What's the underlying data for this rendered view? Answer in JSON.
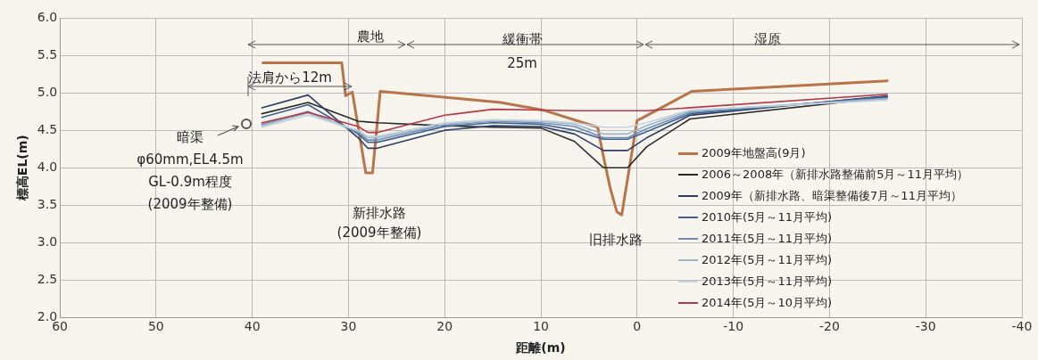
{
  "chart_data": {
    "type": "line",
    "xlabel": "距離(m)",
    "ylabel": "標高EL(m)",
    "xlim": [
      60,
      -40
    ],
    "xticks": [
      60,
      50,
      40,
      30,
      20,
      10,
      0,
      -10,
      -20,
      -30,
      -40
    ],
    "ylim": [
      2.0,
      6.0
    ],
    "yticks": [
      {
        "value": 2,
        "label": "2.0"
      },
      {
        "value": 2.5,
        "label": "2.5"
      },
      {
        "value": 3,
        "label": "3.0"
      },
      {
        "value": 3.5,
        "label": "3.5"
      },
      {
        "value": 4,
        "label": "4.0"
      },
      {
        "value": 4.5,
        "label": "4.5"
      },
      {
        "value": 5,
        "label": "5.0"
      },
      {
        "value": 5.5,
        "label": "5.5"
      },
      {
        "value": 6,
        "label": "6.0"
      }
    ],
    "grid": true,
    "legend": "bottom right",
    "marker": "none",
    "line_style": "solid",
    "x": [
      39,
      34.2,
      29,
      28,
      27,
      20,
      15,
      10,
      6.5,
      3.5,
      1,
      -1,
      -5.5,
      -26
    ],
    "series": [
      {
        "name": "2009年地盤高(9月)",
        "color": "#b8744a",
        "x": [
          38.9,
          30.7,
          30.3,
          29.6,
          28.2,
          27.5,
          26.7,
          14.2,
          9.8,
          4.1,
          3.6,
          2.8,
          2.1,
          1.6,
          0,
          -0.5,
          -5.7,
          -26
        ],
        "values": [
          5.4,
          5.4,
          4.96,
          5.01,
          3.93,
          3.93,
          5.02,
          4.87,
          4.77,
          4.54,
          4.21,
          3.73,
          3.41,
          3.37,
          4.63,
          4.66,
          5.02,
          5.16
        ]
      },
      {
        "name": "2006～2008年（新排水路整備前5月～11月平均）",
        "color": "#2a2a2a",
        "values": [
          4.72,
          4.87,
          4.62,
          4.61,
          4.6,
          4.56,
          4.54,
          4.53,
          4.35,
          4.0,
          4.0,
          4.28,
          4.65,
          4.94
        ]
      },
      {
        "name": "2009年（新排水路、暗渠整備後7月～11月平均）",
        "color": "#2e3d66",
        "values": [
          4.8,
          4.97,
          4.4,
          4.26,
          4.26,
          4.5,
          4.56,
          4.55,
          4.45,
          4.23,
          4.23,
          4.4,
          4.7,
          4.96
        ]
      },
      {
        "name": "2010年(5月～11月平均)",
        "color": "#3f5f90",
        "values": [
          4.67,
          4.84,
          4.45,
          4.34,
          4.34,
          4.55,
          4.6,
          4.58,
          4.5,
          4.38,
          4.38,
          4.48,
          4.72,
          4.95
        ]
      },
      {
        "name": "2011年(5月～11月平均)",
        "color": "#6d8db5",
        "values": [
          4.58,
          4.75,
          4.47,
          4.37,
          4.37,
          4.57,
          4.62,
          4.6,
          4.55,
          4.4,
          4.4,
          4.52,
          4.74,
          4.93
        ]
      },
      {
        "name": "2012年(5月～11月平均)",
        "color": "#9ab5cc",
        "values": [
          4.56,
          4.73,
          4.49,
          4.4,
          4.4,
          4.58,
          4.63,
          4.62,
          4.58,
          4.45,
          4.45,
          4.56,
          4.76,
          4.92
        ]
      },
      {
        "name": "2013年(5月～11月平均)",
        "color": "#c3d3de",
        "values": [
          4.54,
          4.7,
          4.5,
          4.42,
          4.42,
          4.6,
          4.64,
          4.63,
          4.6,
          4.54,
          4.54,
          4.6,
          4.77,
          4.9
        ]
      },
      {
        "name": "2014年(5月～10月平均)",
        "color": "#b5384a",
        "values": [
          4.6,
          4.74,
          4.55,
          4.47,
          4.47,
          4.7,
          4.78,
          4.77,
          4.76,
          4.76,
          4.76,
          4.76,
          4.8,
          4.98
        ]
      }
    ],
    "annotations": [
      "農地",
      "緩衝帯",
      "25m",
      "湿原",
      "法肩から12m",
      "暗渠\nφ60mm,EL4.5m\nGL-0.9m程度\n(2009年整備)",
      "新排水路\n(2009年整備)",
      "旧排水路"
    ]
  }
}
